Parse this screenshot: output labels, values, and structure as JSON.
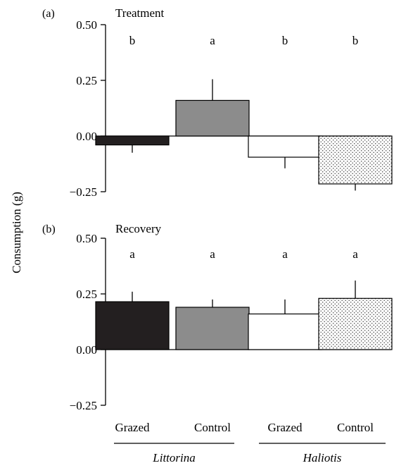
{
  "chart_data": {
    "type": "bar",
    "ylabel": "Consumption (g)",
    "categories": [
      "Grazed",
      "Control",
      "Grazed",
      "Control"
    ],
    "groups": [
      {
        "label": "Littorina",
        "categories": [
          0,
          1
        ]
      },
      {
        "label": "Haliotis",
        "categories": [
          2,
          3
        ]
      }
    ],
    "bar_fills": [
      "#231f20",
      "#8c8c8c",
      "#ffffff",
      "stipple"
    ],
    "ylim": [
      -0.25,
      0.5
    ],
    "yticks": [
      "0.50",
      "0.25",
      "0.00",
      "−0.25"
    ],
    "ytick_values": [
      0.5,
      0.25,
      0.0,
      -0.25
    ],
    "panels": [
      {
        "letter": "(a)",
        "title": "Treatment",
        "values": [
          -0.04,
          0.16,
          -0.095,
          -0.215
        ],
        "errors": [
          0.035,
          0.095,
          0.05,
          0.03
        ],
        "letters": [
          "b",
          "a",
          "b",
          "b"
        ]
      },
      {
        "letter": "(b)",
        "title": "Recovery",
        "values": [
          0.215,
          0.19,
          0.16,
          0.23
        ],
        "errors": [
          0.045,
          0.035,
          0.065,
          0.08
        ],
        "letters": [
          "a",
          "a",
          "a",
          "a"
        ]
      }
    ]
  }
}
